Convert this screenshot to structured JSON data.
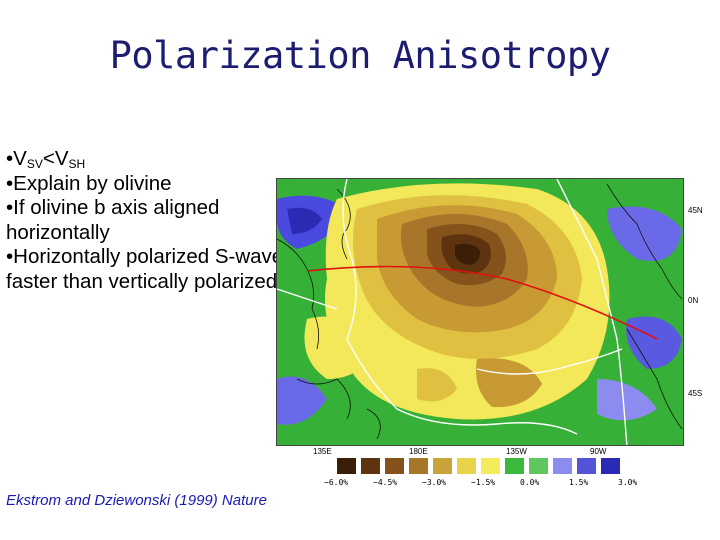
{
  "title": "Polarization Anisotropy",
  "bullets": {
    "b1_prefix": "•V",
    "b1_sub1": "SV",
    "b1_mid": "<V",
    "b1_sub2": "SH",
    "b2": "•Explain by olivine",
    "b3": "•If olivine b axis aligned horizontally",
    "b4": "•Horizontally polarized S-waves faster than vertically polarized"
  },
  "citation": "Ekstrom and Dziewonski (1999) Nature",
  "map": {
    "lat_labels": [
      "45N",
      "0N",
      "45S"
    ],
    "lon_labels": [
      "135E",
      "180E",
      "135W",
      "90W"
    ]
  },
  "colorbar": {
    "colors": [
      "#3a1e08",
      "#5e3410",
      "#86521c",
      "#a8762a",
      "#c9a23a",
      "#e8d34a",
      "#f4ec5a",
      "#3cb83c",
      "#5ec85e",
      "#8c8cf0",
      "#5454d8",
      "#2a2ab4"
    ],
    "labels": [
      "−6.0%",
      "−4.5%",
      "−3.0%",
      "−1.5%",
      "0.0%",
      "1.5%",
      "3.0%"
    ]
  }
}
